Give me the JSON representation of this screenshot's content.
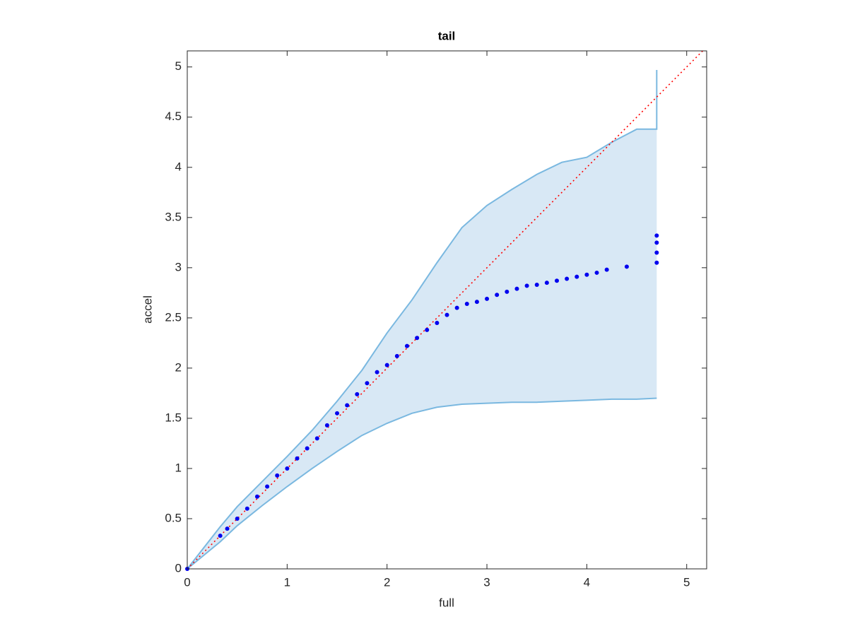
{
  "chart_data": {
    "type": "scatter",
    "title": "tail",
    "x_label": "full",
    "y_label": "accel",
    "xlim": [
      0,
      5.2
    ],
    "ylim": [
      0,
      5.16
    ],
    "xticks": [
      0,
      1,
      2,
      3,
      4,
      5
    ],
    "yticks": [
      0,
      0.5,
      1,
      1.5,
      2,
      2.5,
      3,
      3.5,
      4,
      4.5,
      5
    ],
    "grid": false,
    "band": {
      "color": "#7ab8e0",
      "fill": "#d8e8f5",
      "x": [
        0,
        0.33,
        0.5,
        0.75,
        1,
        1.25,
        1.5,
        1.75,
        2,
        2.25,
        2.5,
        2.75,
        3,
        3.25,
        3.5,
        3.75,
        4,
        4.25,
        4.5,
        4.7,
        4.7
      ],
      "upper": [
        0,
        0.42,
        0.62,
        0.87,
        1.12,
        1.38,
        1.67,
        1.98,
        2.35,
        2.68,
        3.05,
        3.4,
        3.62,
        3.78,
        3.93,
        4.05,
        4.1,
        4.25,
        4.38,
        4.38,
        4.97
      ],
      "lower": [
        0,
        0.27,
        0.43,
        0.63,
        0.82,
        1.0,
        1.17,
        1.33,
        1.45,
        1.55,
        1.61,
        1.64,
        1.65,
        1.66,
        1.66,
        1.67,
        1.68,
        1.69,
        1.69,
        1.7,
        1.7
      ]
    },
    "reference": {
      "color": "#ff0000",
      "x": [
        0,
        5.2
      ],
      "values": [
        0,
        5.2
      ]
    },
    "points": {
      "color": "#0000ee",
      "x": [
        0,
        0.33,
        0.4,
        0.5,
        0.6,
        0.7,
        0.8,
        0.9,
        1.0,
        1.1,
        1.2,
        1.3,
        1.4,
        1.5,
        1.6,
        1.7,
        1.8,
        1.9,
        2.0,
        2.1,
        2.2,
        2.3,
        2.4,
        2.5,
        2.6,
        2.7,
        2.8,
        2.9,
        3.0,
        3.1,
        3.2,
        3.3,
        3.4,
        3.5,
        3.6,
        3.7,
        3.8,
        3.9,
        4.0,
        4.1,
        4.2,
        4.4,
        4.7,
        4.7,
        4.7,
        4.7
      ],
      "values": [
        0,
        0.33,
        0.4,
        0.5,
        0.6,
        0.72,
        0.82,
        0.93,
        1.0,
        1.1,
        1.2,
        1.3,
        1.43,
        1.55,
        1.63,
        1.74,
        1.85,
        1.96,
        2.03,
        2.12,
        2.22,
        2.3,
        2.38,
        2.45,
        2.53,
        2.6,
        2.64,
        2.66,
        2.69,
        2.73,
        2.76,
        2.79,
        2.82,
        2.83,
        2.85,
        2.87,
        2.89,
        2.91,
        2.93,
        2.95,
        2.98,
        3.01,
        3.05,
        3.15,
        3.25,
        3.32
      ]
    }
  }
}
